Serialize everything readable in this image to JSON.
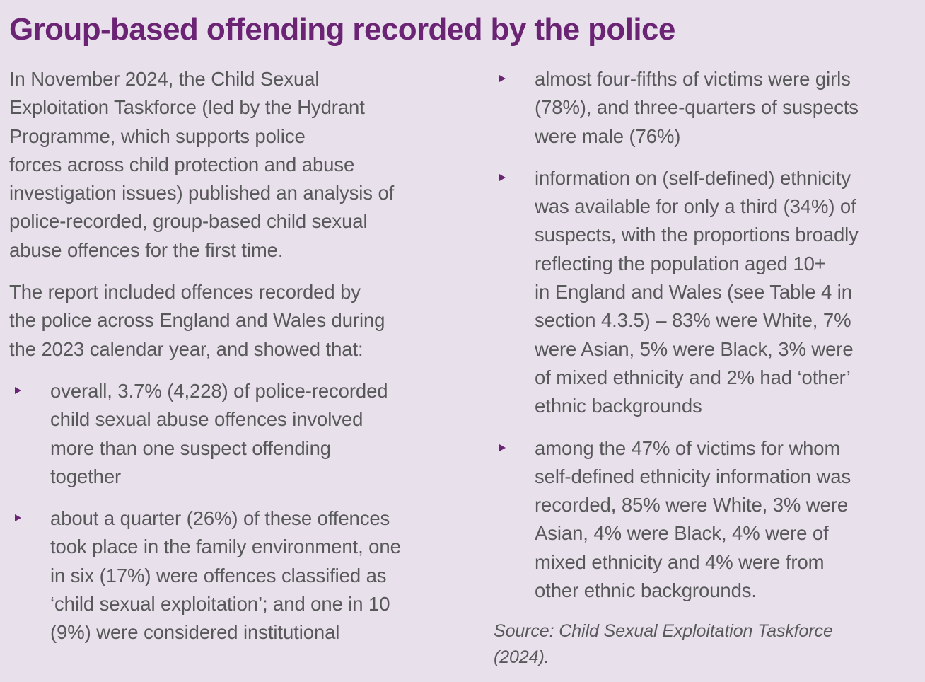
{
  "title": "Group-based offending recorded by the police",
  "left": {
    "para1": [
      "In November 2024, the Child Sexual",
      "Exploitation Taskforce (led by the Hydrant",
      "Programme, which supports police",
      "forces across child protection and abuse",
      "investigation issues) published an analysis of",
      "police-recorded, group-based child sexual",
      "abuse offences for the first time."
    ],
    "para2": [
      "The report included offences recorded by",
      "the police across England and Wales during",
      "the 2023 calendar year, and showed that:"
    ],
    "bullets": [
      [
        "overall, 3.7% (4,228) of police-recorded",
        "child sexual abuse offences involved",
        "more than one suspect offending",
        "together"
      ],
      [
        "about a quarter (26%) of these offences",
        "took place in the family environment, one",
        "in six (17%) were offences classified as",
        "‘child sexual exploitation’; and one in 10",
        "(9%) were considered institutional"
      ]
    ]
  },
  "right": {
    "bullets": [
      [
        "almost four-fifths of victims were girls",
        "(78%), and three-quarters of suspects",
        "were male (76%)"
      ],
      [
        "information on (self-defined) ethnicity",
        "was available for only a third (34%) of",
        "suspects, with the proportions broadly",
        "reflecting the population aged 10+",
        "in England and Wales (see Table 4 in",
        "section 4.3.5) – 83% were White, 7%",
        "were Asian, 5% were Black, 3% were",
        "of mixed ethnicity and 2% had ‘other’",
        "ethnic backgrounds"
      ],
      [
        "among the 47% of victims for whom",
        "self-defined ethnicity information was",
        "recorded, 85% were White, 3% were",
        "Asian, 4% were Black, 4% were of",
        "mixed ethnicity and 4% were from",
        "other ethnic backgrounds."
      ]
    ],
    "source": [
      "Source: Child Sexual Exploitation Taskforce",
      "(2024)."
    ]
  },
  "colors": {
    "background": "#e8e1ec",
    "title": "#6b2374",
    "bullet_marker": "#6b2374",
    "body_text": "#58585a"
  },
  "icons": {
    "bullet": "triangle-bullet-icon"
  }
}
